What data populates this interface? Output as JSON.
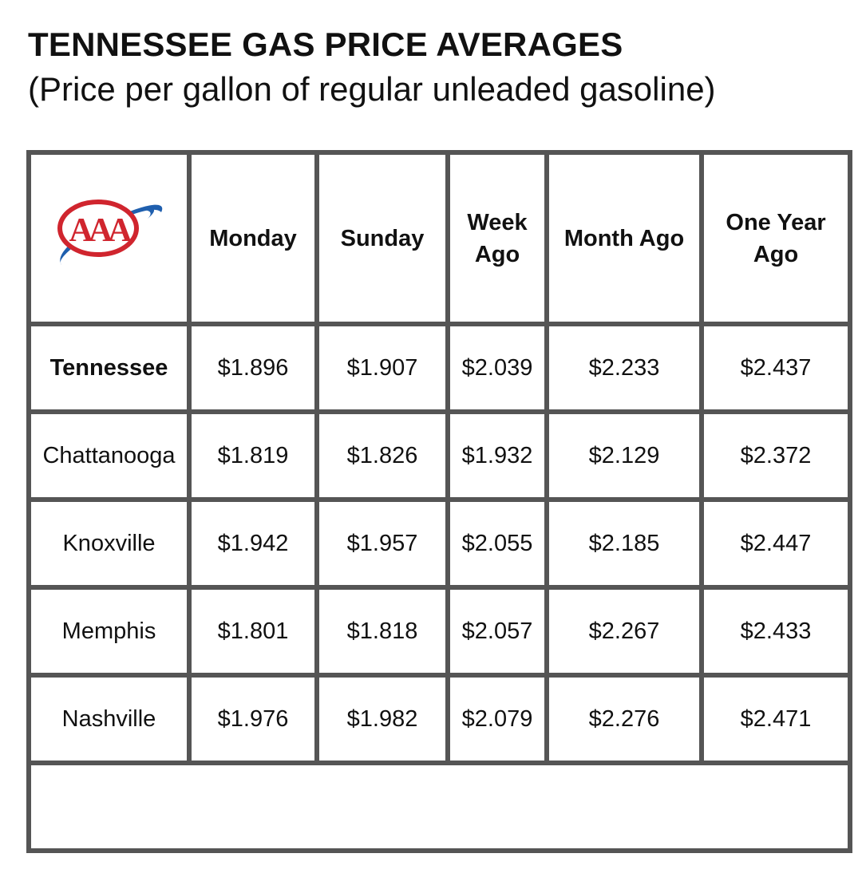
{
  "header": {
    "title": "TENNESSEE GAS PRICE AVERAGES",
    "subtitle": "(Price per gallon of regular unleaded gasoline)"
  },
  "logo": {
    "text": "AAA",
    "icon": "aaa-logo",
    "colors": {
      "red": "#d0252e",
      "blue": "#1f5fae"
    }
  },
  "table": {
    "columns": [
      "Monday",
      "Sunday",
      "Week Ago",
      "Month Ago",
      "One Year Ago"
    ],
    "rows": [
      {
        "region": "Tennessee",
        "values": [
          "$1.896",
          "$1.907",
          "$2.039",
          "$2.233",
          "$2.437"
        ]
      },
      {
        "region": "Chattanooga",
        "values": [
          "$1.819",
          "$1.826",
          "$1.932",
          "$2.129",
          "$2.372"
        ]
      },
      {
        "region": "Knoxville",
        "values": [
          "$1.942",
          "$1.957",
          "$2.055",
          "$2.185",
          "$2.447"
        ]
      },
      {
        "region": "Memphis",
        "values": [
          "$1.801",
          "$1.818",
          "$2.057",
          "$2.267",
          "$2.433"
        ]
      },
      {
        "region": "Nashville",
        "values": [
          "$1.976",
          "$1.982",
          "$2.079",
          "$2.276",
          "$2.471"
        ]
      }
    ]
  }
}
